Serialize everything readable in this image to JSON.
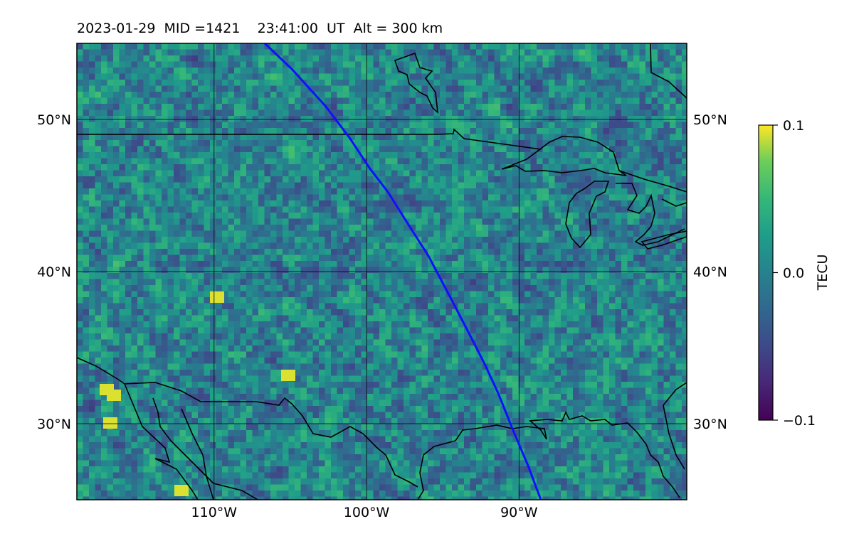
{
  "title": "2023-01-29  MID =1421    23:41:00  UT  Alt = 300 km",
  "map": {
    "lon_range": [
      -119,
      -79
    ],
    "lat_range": [
      25,
      55
    ],
    "lon_ticks": [
      {
        "value": -110,
        "label": "110°W"
      },
      {
        "value": -100,
        "label": "100°W"
      },
      {
        "value": -90,
        "label": "90°W"
      }
    ],
    "lat_ticks": [
      {
        "value": 30,
        "label": "30°N"
      },
      {
        "value": 40,
        "label": "40°N"
      },
      {
        "value": 50,
        "label": "50°N"
      }
    ],
    "field": "detrended TEC perturbation",
    "track_color": "#1010ff",
    "coast_color": "#000000"
  },
  "colorbar": {
    "label": "TECU",
    "min": -0.1,
    "max": 0.1,
    "ticks": [
      {
        "value": 0.1,
        "label": "0.1"
      },
      {
        "value": 0.0,
        "label": "0.0"
      },
      {
        "value": -0.1,
        "label": "−0.1"
      }
    ],
    "colormap": "viridis"
  }
}
